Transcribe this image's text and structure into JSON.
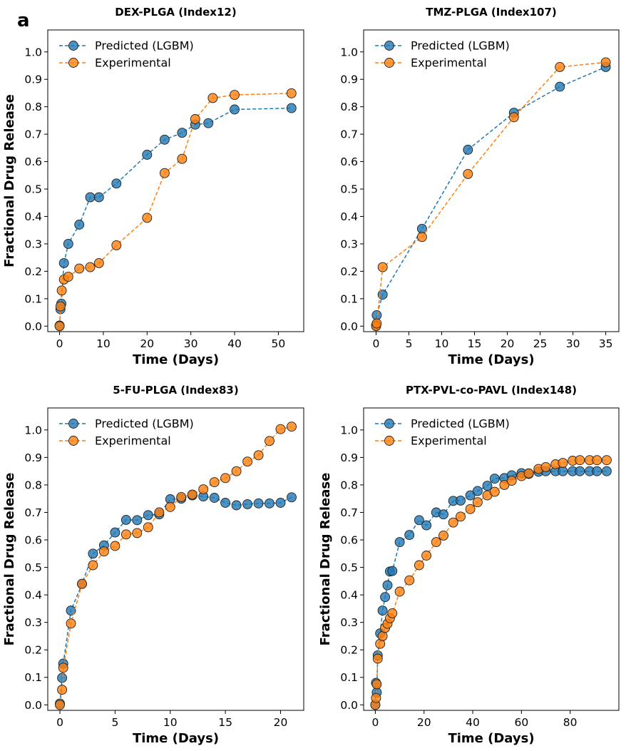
{
  "figure": {
    "panel_label": "a",
    "colors": {
      "predicted": "#1f77b4",
      "experimental": "#ff7f0e"
    }
  },
  "chart_data": [
    {
      "type": "line",
      "title": "DEX-PLGA (Index12)",
      "xlabel": "Time (Days)",
      "ylabel": "Fractional Drug Release",
      "xlim": [
        -2.7,
        55.8
      ],
      "ylim": [
        -0.02,
        1.08
      ],
      "xticks": [
        0,
        10,
        20,
        30,
        40,
        50
      ],
      "yticks": [
        0.0,
        0.1,
        0.2,
        0.3,
        0.4,
        0.5,
        0.6,
        0.7,
        0.8,
        0.9,
        1.0
      ],
      "legend": "top-left",
      "series": [
        {
          "name": "Predicted (LGBM)",
          "x": [
            0,
            0.2,
            0.4,
            1,
            2,
            4.5,
            7,
            9,
            13,
            20,
            24,
            28,
            31,
            34,
            40,
            53
          ],
          "y": [
            0.002,
            0.062,
            0.082,
            0.23,
            0.3,
            0.37,
            0.47,
            0.47,
            0.52,
            0.625,
            0.68,
            0.705,
            0.735,
            0.74,
            0.79,
            0.795
          ]
        },
        {
          "name": "Experimental",
          "x": [
            0,
            0.2,
            0.5,
            1,
            2,
            4.5,
            7,
            9,
            13,
            20,
            24,
            28,
            31,
            35,
            40,
            53
          ],
          "y": [
            0.0,
            0.072,
            0.13,
            0.17,
            0.18,
            0.21,
            0.215,
            0.23,
            0.295,
            0.395,
            0.558,
            0.61,
            0.755,
            0.832,
            0.843,
            0.849
          ]
        }
      ]
    },
    {
      "type": "line",
      "title": "TMZ-PLGA (Index107)",
      "xlabel": "Time (Days)",
      "ylabel": "",
      "xlim": [
        -1.9,
        37.0
      ],
      "ylim": [
        -0.02,
        1.08
      ],
      "xticks": [
        0,
        5,
        10,
        15,
        20,
        25,
        30,
        35
      ],
      "yticks": [
        0.0,
        0.1,
        0.2,
        0.3,
        0.4,
        0.5,
        0.6,
        0.7,
        0.8,
        0.9,
        1.0
      ],
      "legend": "top-left",
      "series": [
        {
          "name": "Predicted (LGBM)",
          "x": [
            0,
            0.1,
            1,
            7,
            14,
            21,
            28,
            35
          ],
          "y": [
            0.003,
            0.04,
            0.115,
            0.355,
            0.643,
            0.778,
            0.873,
            0.945
          ]
        },
        {
          "name": "Experimental",
          "x": [
            0,
            0.1,
            1,
            7,
            14,
            21,
            28,
            35
          ],
          "y": [
            0.0,
            0.01,
            0.215,
            0.325,
            0.555,
            0.762,
            0.945,
            0.962
          ]
        }
      ]
    },
    {
      "type": "line",
      "title": "5-FU-PLGA (Index83)",
      "xlabel": "Time (Days)",
      "ylabel": "Fractional Drug Release",
      "xlim": [
        -1.1,
        22.1
      ],
      "ylim": [
        -0.02,
        1.08
      ],
      "xticks": [
        0,
        5,
        10,
        15,
        20
      ],
      "yticks": [
        0.0,
        0.1,
        0.2,
        0.3,
        0.4,
        0.5,
        0.6,
        0.7,
        0.8,
        0.9,
        1.0
      ],
      "legend": "top-left",
      "series": [
        {
          "name": "Predicted (LGBM)",
          "x": [
            0,
            0.2,
            0.3,
            1,
            2,
            3,
            4,
            5,
            6,
            7,
            8,
            9,
            10,
            11,
            12,
            13,
            14,
            15,
            16,
            17,
            18,
            19,
            20,
            21
          ],
          "y": [
            0.005,
            0.098,
            0.15,
            0.343,
            0.44,
            0.55,
            0.58,
            0.627,
            0.673,
            0.672,
            0.69,
            0.693,
            0.748,
            0.75,
            0.762,
            0.758,
            0.753,
            0.735,
            0.726,
            0.73,
            0.733,
            0.733,
            0.735,
            0.755
          ]
        },
        {
          "name": "Experimental",
          "x": [
            0,
            0.2,
            0.3,
            1,
            2,
            3,
            4,
            5,
            6,
            7,
            8,
            9,
            10,
            11,
            12,
            13,
            14,
            15,
            16,
            17,
            18,
            19,
            20,
            21
          ],
          "y": [
            0.0,
            0.055,
            0.135,
            0.296,
            0.44,
            0.508,
            0.558,
            0.578,
            0.62,
            0.625,
            0.646,
            0.7,
            0.72,
            0.756,
            0.765,
            0.784,
            0.81,
            0.825,
            0.85,
            0.885,
            0.908,
            0.96,
            1.003,
            1.012
          ]
        }
      ]
    },
    {
      "type": "line",
      "title": "PTX-PVL-co-PAVL (Index148)",
      "xlabel": "Time (Days)",
      "ylabel": "Fractional Drug Release",
      "xlim": [
        -4.8,
        100.0
      ],
      "ylim": [
        -0.02,
        1.08
      ],
      "xticks": [
        0,
        20,
        40,
        60,
        80
      ],
      "yticks": [
        0.0,
        0.1,
        0.2,
        0.3,
        0.4,
        0.5,
        0.6,
        0.7,
        0.8,
        0.9,
        1.0
      ],
      "legend": "top-left",
      "series": [
        {
          "name": "Predicted (LGBM)",
          "x": [
            0,
            0.3,
            0.6,
            1,
            2,
            3,
            4,
            5,
            6,
            7,
            10,
            14,
            18,
            21,
            25,
            28,
            32,
            35,
            39,
            42,
            46,
            49,
            53,
            56,
            60,
            63,
            67,
            70,
            74,
            77,
            81,
            84,
            88,
            91,
            95
          ],
          "y": [
            0.0,
            0.08,
            0.045,
            0.18,
            0.26,
            0.343,
            0.392,
            0.435,
            0.485,
            0.487,
            0.592,
            0.618,
            0.672,
            0.653,
            0.7,
            0.693,
            0.742,
            0.743,
            0.762,
            0.778,
            0.797,
            0.823,
            0.825,
            0.835,
            0.843,
            0.84,
            0.848,
            0.85,
            0.85,
            0.85,
            0.85,
            0.85,
            0.85,
            0.85,
            0.85
          ]
        },
        {
          "name": "Experimental",
          "x": [
            0,
            0.3,
            0.6,
            1,
            2,
            3,
            4,
            5,
            6,
            7,
            10,
            14,
            18,
            21,
            25,
            28,
            32,
            35,
            39,
            42,
            46,
            49,
            53,
            56,
            60,
            63,
            67,
            70,
            74,
            77,
            81,
            84,
            88,
            91,
            95
          ],
          "y": [
            0.0,
            0.025,
            0.075,
            0.168,
            0.222,
            0.25,
            0.28,
            0.295,
            0.315,
            0.333,
            0.412,
            0.453,
            0.508,
            0.543,
            0.592,
            0.616,
            0.663,
            0.685,
            0.712,
            0.737,
            0.762,
            0.775,
            0.8,
            0.815,
            0.832,
            0.842,
            0.858,
            0.865,
            0.875,
            0.88,
            0.888,
            0.89,
            0.89,
            0.89,
            0.89
          ]
        }
      ]
    }
  ]
}
